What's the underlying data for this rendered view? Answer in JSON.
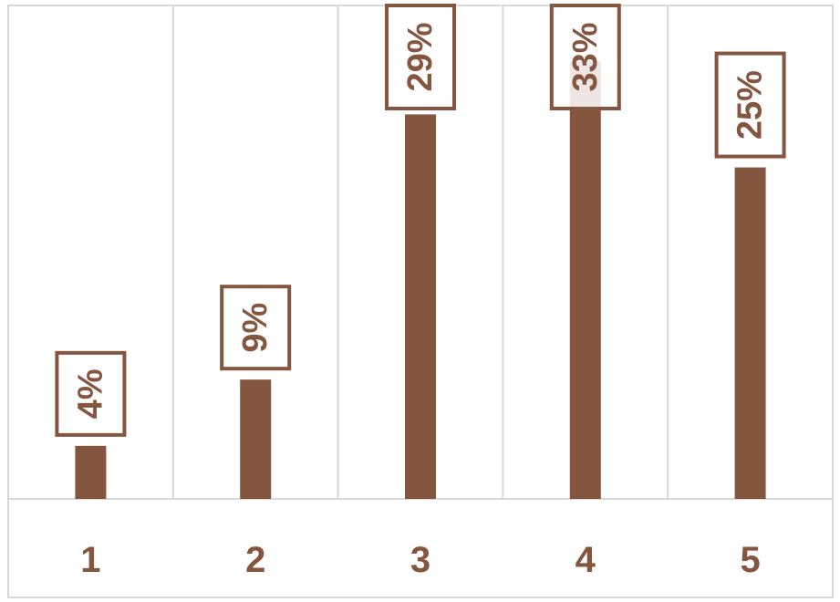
{
  "chart_data": {
    "type": "bar",
    "categories": [
      "1",
      "2",
      "3",
      "4",
      "5"
    ],
    "values": [
      4,
      9,
      29,
      33,
      25
    ],
    "data_labels": [
      "4%",
      "9%",
      "29%",
      "33%",
      "25%"
    ],
    "ylim": [
      0,
      40
    ],
    "grid": "vertical",
    "colors": {
      "bar": "#85563F",
      "label_border": "#85563F",
      "label_text": "#85563F",
      "tick_text": "#85563F",
      "grid": "#D9D9D9",
      "frame": "#D9D9D9"
    }
  }
}
